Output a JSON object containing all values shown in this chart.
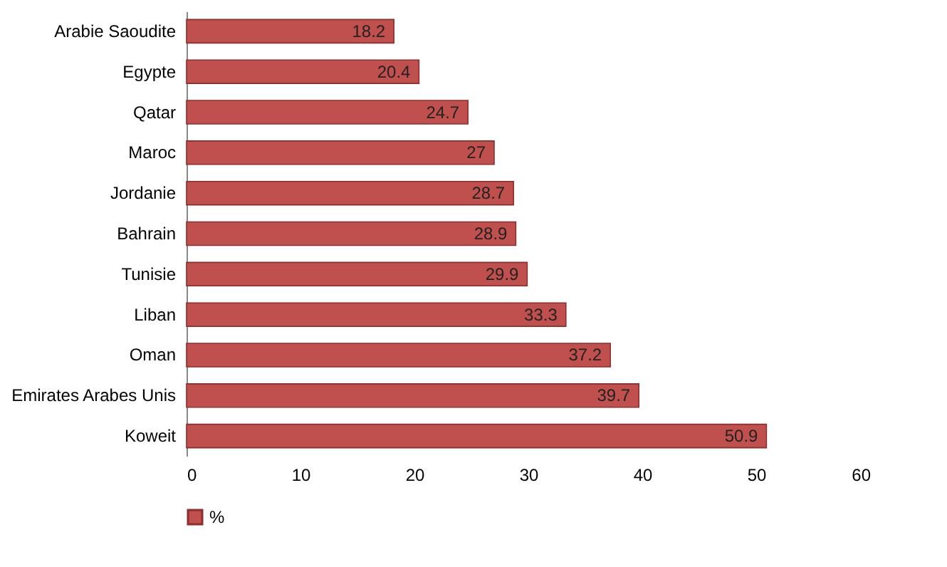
{
  "chart_data": {
    "type": "bar",
    "orientation": "horizontal",
    "categories": [
      "Arabie Saoudite",
      "Egypte",
      "Qatar",
      "Maroc",
      "Jordanie",
      "Bahrain",
      "Tunisie",
      "Liban",
      "Oman",
      "Emirates Arabes Unis",
      "Koweit"
    ],
    "series": [
      {
        "name": "%",
        "color": "#c0504d",
        "values": [
          18.2,
          20.4,
          24.7,
          27,
          28.7,
          28.9,
          29.9,
          33.3,
          37.2,
          39.7,
          50.9
        ]
      }
    ],
    "xlim": [
      0,
      60
    ],
    "xticks": [
      0,
      10,
      20,
      30,
      40,
      50,
      60
    ],
    "grid": false,
    "legend": "bottom",
    "data_labels": true
  }
}
